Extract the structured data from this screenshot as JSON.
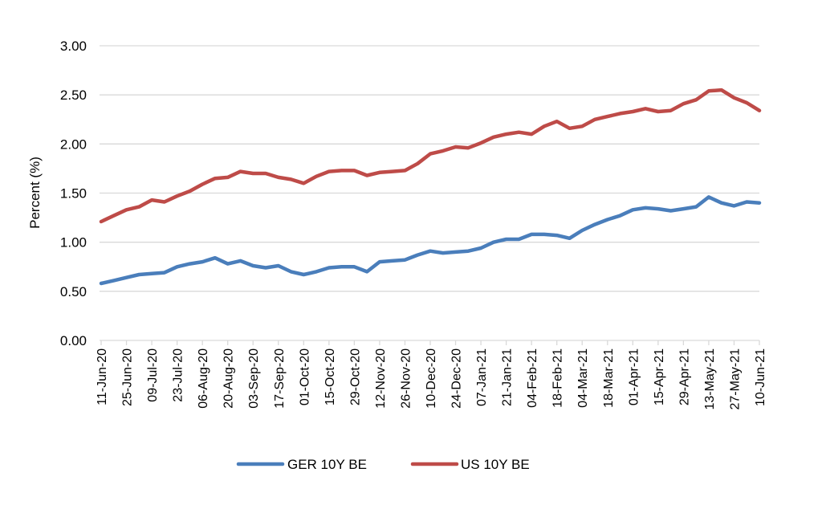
{
  "chart_data": {
    "type": "line",
    "title": "",
    "xlabel": "",
    "ylabel": "Percent (%)",
    "ylim": [
      0,
      3
    ],
    "y_ticks": [
      "0.00",
      "0.50",
      "1.00",
      "1.50",
      "2.00",
      "2.50",
      "3.00"
    ],
    "y_tick_values": [
      0,
      0.5,
      1,
      1.5,
      2,
      2.5,
      3
    ],
    "x_tick_labels": [
      "11-Jun-20",
      "25-Jun-20",
      "09-Jul-20",
      "23-Jul-20",
      "06-Aug-20",
      "20-Aug-20",
      "03-Sep-20",
      "17-Sep-20",
      "01-Oct-20",
      "15-Oct-20",
      "29-Oct-20",
      "12-Nov-20",
      "26-Nov-20",
      "10-Dec-20",
      "24-Dec-20",
      "07-Jan-21",
      "21-Jan-21",
      "04-Feb-21",
      "18-Feb-21",
      "04-Mar-21",
      "18-Mar-21",
      "01-Apr-21",
      "15-Apr-21",
      "29-Apr-21",
      "13-May-21",
      "27-May-21",
      "10-Jun-21"
    ],
    "x_unit": "weeks since 11-Jun-20",
    "xlim": [
      0,
      52
    ],
    "grid": true,
    "legend_position": "bottom",
    "x": [
      0,
      1,
      2,
      3,
      4,
      5,
      6,
      7,
      8,
      9,
      10,
      11,
      12,
      13,
      14,
      15,
      16,
      17,
      18,
      19,
      20,
      21,
      22,
      23,
      24,
      25,
      26,
      27,
      28,
      29,
      30,
      31,
      32,
      33,
      34,
      35,
      36,
      37,
      38,
      39,
      40,
      41,
      42,
      43,
      44,
      45,
      46,
      47,
      48,
      49,
      50,
      51,
      52
    ],
    "series": [
      {
        "name": "GER 10Y BE",
        "color": "#4a7ebb",
        "values": [
          0.58,
          0.61,
          0.64,
          0.67,
          0.68,
          0.69,
          0.75,
          0.78,
          0.8,
          0.84,
          0.78,
          0.81,
          0.76,
          0.74,
          0.76,
          0.7,
          0.67,
          0.7,
          0.74,
          0.75,
          0.75,
          0.7,
          0.8,
          0.81,
          0.82,
          0.87,
          0.91,
          0.89,
          0.9,
          0.91,
          0.94,
          1.0,
          1.03,
          1.03,
          1.08,
          1.08,
          1.07,
          1.04,
          1.12,
          1.18,
          1.23,
          1.27,
          1.33,
          1.35,
          1.34,
          1.32,
          1.34,
          1.36,
          1.46,
          1.4,
          1.37,
          1.41,
          1.4
        ]
      },
      {
        "name": "US 10Y BE",
        "color": "#be4b48",
        "values": [
          1.21,
          1.27,
          1.33,
          1.36,
          1.43,
          1.41,
          1.47,
          1.52,
          1.59,
          1.65,
          1.66,
          1.72,
          1.7,
          1.7,
          1.66,
          1.64,
          1.6,
          1.67,
          1.72,
          1.73,
          1.73,
          1.68,
          1.71,
          1.72,
          1.73,
          1.8,
          1.9,
          1.93,
          1.97,
          1.96,
          2.01,
          2.07,
          2.1,
          2.12,
          2.1,
          2.18,
          2.23,
          2.16,
          2.18,
          2.25,
          2.28,
          2.31,
          2.33,
          2.36,
          2.33,
          2.34,
          2.41,
          2.45,
          2.54,
          2.55,
          2.47,
          2.42,
          2.34
        ]
      }
    ]
  }
}
